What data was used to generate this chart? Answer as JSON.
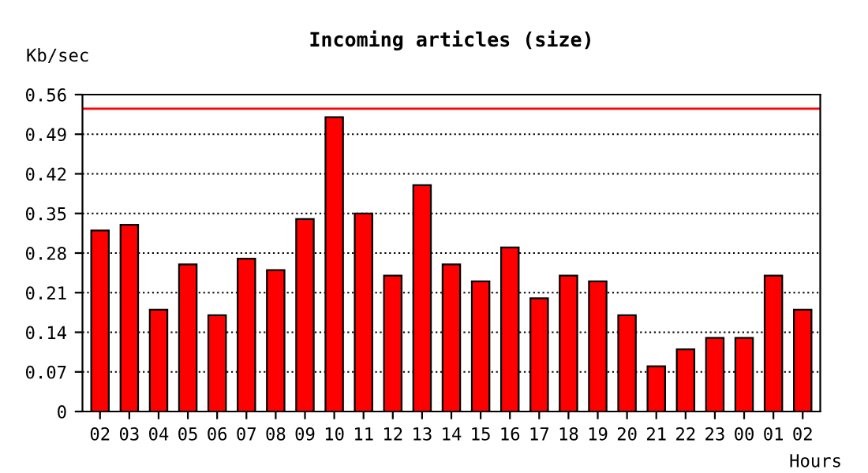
{
  "chart_data": {
    "type": "bar",
    "title": "Incoming articles (size)",
    "ylabel": "Kb/sec",
    "xlabel": "Hours",
    "categories": [
      "02",
      "03",
      "04",
      "05",
      "06",
      "07",
      "08",
      "09",
      "10",
      "11",
      "12",
      "13",
      "14",
      "15",
      "16",
      "17",
      "18",
      "19",
      "20",
      "21",
      "22",
      "23",
      "00",
      "01",
      "02"
    ],
    "series": [
      {
        "color": "#ff0000",
        "values": [
          0.32,
          0.33,
          0.18,
          0.26,
          0.17,
          0.27,
          0.25,
          0.34,
          0.52,
          0.35,
          0.24,
          0.4,
          0.26,
          0.23,
          0.29,
          0.2,
          0.24,
          0.23,
          0.17,
          0.08,
          0.11,
          0.13,
          0.13,
          0.24,
          0.18
        ]
      }
    ],
    "ylim": [
      0,
      0.56
    ],
    "yticks": [
      0,
      0.07,
      0.14,
      0.21,
      0.28,
      0.35,
      0.42,
      0.49,
      0.56
    ],
    "ref_lines": [
      {
        "axis": "y",
        "value": 0.535,
        "color": "#ff0000",
        "line_style": "solid"
      }
    ],
    "grid": "y",
    "line_style": "dotted"
  }
}
